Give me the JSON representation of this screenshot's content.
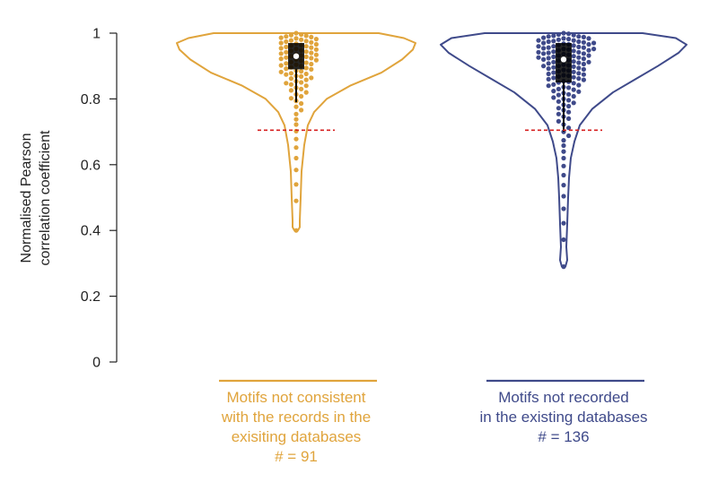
{
  "chart_data": {
    "type": "violin-swarm",
    "ylabel": [
      "Normalised Pearson",
      "correlation coefficient"
    ],
    "ylim": [
      0,
      1
    ],
    "yticks": [
      {
        "value": 0,
        "label": "0"
      },
      {
        "value": 0.2,
        "label": "0.2"
      },
      {
        "value": 0.4,
        "label": "0.4"
      },
      {
        "value": 0.6,
        "label": "0.6"
      },
      {
        "value": 0.8,
        "label": "0.8"
      },
      {
        "value": 1,
        "label": "1"
      }
    ],
    "threshold": 0.705,
    "groups": [
      {
        "label_lines": [
          "Motifs not consistent",
          "with the records in the",
          "exisiting databases",
          "# = 91"
        ],
        "color": "#E0A43C",
        "n": 91,
        "min": 0.4,
        "max": 1.0,
        "q1": 0.89,
        "median": 0.93,
        "q3": 0.97,
        "whisker_low": 0.79
      },
      {
        "label_lines": [
          "Motifs not recorded",
          "in the existing databases",
          "# = 136"
        ],
        "color": "#3F4A8A",
        "n": 136,
        "min": 0.29,
        "max": 1.0,
        "q1": 0.85,
        "median": 0.92,
        "q3": 0.97,
        "whisker_low": 0.7
      }
    ]
  }
}
